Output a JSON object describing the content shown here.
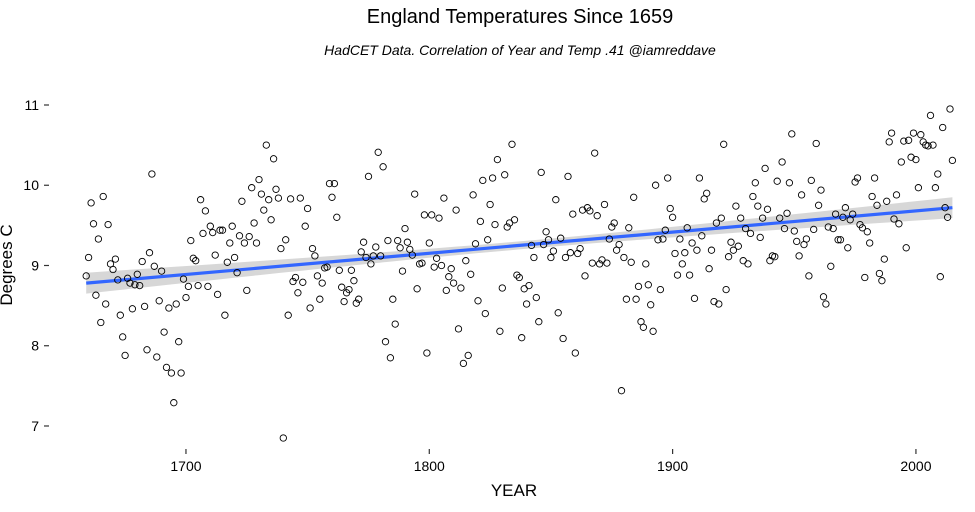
{
  "chart_data": {
    "type": "scatter",
    "title": "England Temperatures Since 1659",
    "subtitle": "HadCET Data. Correlation of Year and Temp .41 @iamreddave",
    "xlabel": "YEAR",
    "ylabel": "Degrees C",
    "xlim": [
      1650,
      2023
    ],
    "ylim": [
      6.75,
      11.2
    ],
    "xticks": [
      1700,
      1800,
      1900,
      2000
    ],
    "yticks": [
      7,
      8,
      9,
      10,
      11
    ],
    "grid": false,
    "colors": {
      "points": "#000000",
      "trend": "#3366ff",
      "confidence_band": "#d3d3d3"
    },
    "trend": {
      "method": "linear",
      "x": [
        1659,
        2015
      ],
      "y": [
        8.78,
        9.72
      ],
      "ci_halfwidth_ends": 0.13,
      "ci_halfwidth_mid": 0.05
    },
    "points": [
      [
        1659,
        8.87
      ],
      [
        1660,
        9.1
      ],
      [
        1661,
        9.78
      ],
      [
        1662,
        9.52
      ],
      [
        1663,
        8.63
      ],
      [
        1664,
        9.33
      ],
      [
        1665,
        8.29
      ],
      [
        1666,
        9.86
      ],
      [
        1667,
        8.52
      ],
      [
        1668,
        9.51
      ],
      [
        1669,
        9.02
      ],
      [
        1670,
        8.95
      ],
      [
        1671,
        9.08
      ],
      [
        1672,
        8.82
      ],
      [
        1673,
        8.38
      ],
      [
        1674,
        8.11
      ],
      [
        1675,
        7.88
      ],
      [
        1676,
        8.84
      ],
      [
        1677,
        8.78
      ],
      [
        1678,
        8.46
      ],
      [
        1679,
        8.76
      ],
      [
        1680,
        8.89
      ],
      [
        1681,
        8.75
      ],
      [
        1682,
        9.05
      ],
      [
        1683,
        8.49
      ],
      [
        1684,
        7.95
      ],
      [
        1685,
        9.16
      ],
      [
        1686,
        10.14
      ],
      [
        1687,
        8.99
      ],
      [
        1688,
        7.86
      ],
      [
        1689,
        8.56
      ],
      [
        1690,
        8.93
      ],
      [
        1691,
        8.17
      ],
      [
        1692,
        7.73
      ],
      [
        1693,
        8.47
      ],
      [
        1694,
        7.66
      ],
      [
        1695,
        7.29
      ],
      [
        1696,
        8.52
      ],
      [
        1697,
        8.05
      ],
      [
        1698,
        7.66
      ],
      [
        1699,
        8.83
      ],
      [
        1700,
        8.6
      ],
      [
        1701,
        8.74
      ],
      [
        1702,
        9.31
      ],
      [
        1703,
        9.09
      ],
      [
        1704,
        9.06
      ],
      [
        1705,
        8.75
      ],
      [
        1706,
        9.82
      ],
      [
        1707,
        9.4
      ],
      [
        1708,
        9.68
      ],
      [
        1709,
        8.74
      ],
      [
        1710,
        9.49
      ],
      [
        1711,
        9.41
      ],
      [
        1712,
        9.13
      ],
      [
        1713,
        8.64
      ],
      [
        1714,
        9.44
      ],
      [
        1715,
        9.44
      ],
      [
        1716,
        8.38
      ],
      [
        1717,
        9.04
      ],
      [
        1718,
        9.28
      ],
      [
        1719,
        9.49
      ],
      [
        1720,
        9.1
      ],
      [
        1721,
        8.91
      ],
      [
        1722,
        9.37
      ],
      [
        1723,
        9.8
      ],
      [
        1724,
        9.28
      ],
      [
        1725,
        8.69
      ],
      [
        1726,
        9.36
      ],
      [
        1727,
        9.97
      ],
      [
        1728,
        9.53
      ],
      [
        1729,
        9.28
      ],
      [
        1730,
        10.07
      ],
      [
        1731,
        9.89
      ],
      [
        1732,
        9.69
      ],
      [
        1733,
        10.5
      ],
      [
        1734,
        9.82
      ],
      [
        1735,
        9.57
      ],
      [
        1736,
        10.33
      ],
      [
        1737,
        9.95
      ],
      [
        1738,
        9.84
      ],
      [
        1739,
        9.21
      ],
      [
        1740,
        6.85
      ],
      [
        1741,
        9.32
      ],
      [
        1742,
        8.38
      ],
      [
        1743,
        9.83
      ],
      [
        1744,
        8.8
      ],
      [
        1745,
        8.85
      ],
      [
        1746,
        8.66
      ],
      [
        1747,
        9.84
      ],
      [
        1748,
        8.79
      ],
      [
        1749,
        9.49
      ],
      [
        1750,
        9.71
      ],
      [
        1751,
        8.47
      ],
      [
        1752,
        9.21
      ],
      [
        1753,
        9.12
      ],
      [
        1754,
        8.87
      ],
      [
        1755,
        8.58
      ],
      [
        1756,
        8.78
      ],
      [
        1757,
        8.97
      ],
      [
        1758,
        8.98
      ],
      [
        1759,
        10.02
      ],
      [
        1760,
        9.85
      ],
      [
        1761,
        10.02
      ],
      [
        1762,
        9.6
      ],
      [
        1763,
        8.94
      ],
      [
        1764,
        8.73
      ],
      [
        1765,
        8.55
      ],
      [
        1766,
        8.66
      ],
      [
        1767,
        8.7
      ],
      [
        1768,
        8.94
      ],
      [
        1769,
        8.81
      ],
      [
        1770,
        8.53
      ],
      [
        1771,
        8.58
      ],
      [
        1772,
        9.17
      ],
      [
        1773,
        9.29
      ],
      [
        1774,
        9.1
      ],
      [
        1775,
        10.11
      ],
      [
        1776,
        9.02
      ],
      [
        1777,
        9.12
      ],
      [
        1778,
        9.23
      ],
      [
        1779,
        10.41
      ],
      [
        1780,
        9.12
      ],
      [
        1781,
        10.23
      ],
      [
        1782,
        8.05
      ],
      [
        1783,
        9.31
      ],
      [
        1784,
        7.85
      ],
      [
        1785,
        8.58
      ],
      [
        1786,
        8.27
      ],
      [
        1787,
        9.31
      ],
      [
        1788,
        9.22
      ],
      [
        1789,
        8.93
      ],
      [
        1790,
        9.46
      ],
      [
        1791,
        9.29
      ],
      [
        1792,
        9.2
      ],
      [
        1793,
        9.13
      ],
      [
        1794,
        9.89
      ],
      [
        1795,
        8.71
      ],
      [
        1796,
        9.02
      ],
      [
        1797,
        9.03
      ],
      [
        1798,
        9.63
      ],
      [
        1799,
        7.91
      ],
      [
        1800,
        9.28
      ],
      [
        1801,
        9.63
      ],
      [
        1802,
        8.98
      ],
      [
        1803,
        9.09
      ],
      [
        1804,
        9.59
      ],
      [
        1805,
        9.0
      ],
      [
        1806,
        9.84
      ],
      [
        1807,
        8.69
      ],
      [
        1808,
        8.86
      ],
      [
        1809,
        8.96
      ],
      [
        1810,
        8.78
      ],
      [
        1811,
        9.69
      ],
      [
        1812,
        8.21
      ],
      [
        1813,
        8.72
      ],
      [
        1814,
        7.78
      ],
      [
        1815,
        9.06
      ],
      [
        1816,
        7.88
      ],
      [
        1817,
        8.89
      ],
      [
        1818,
        9.88
      ],
      [
        1819,
        9.27
      ],
      [
        1820,
        8.56
      ],
      [
        1821,
        9.55
      ],
      [
        1822,
        10.06
      ],
      [
        1823,
        8.4
      ],
      [
        1824,
        9.32
      ],
      [
        1825,
        9.76
      ],
      [
        1826,
        10.09
      ],
      [
        1827,
        9.51
      ],
      [
        1828,
        10.32
      ],
      [
        1829,
        8.18
      ],
      [
        1830,
        8.72
      ],
      [
        1831,
        10.13
      ],
      [
        1832,
        9.48
      ],
      [
        1833,
        9.53
      ],
      [
        1834,
        10.51
      ],
      [
        1835,
        9.57
      ],
      [
        1836,
        8.88
      ],
      [
        1837,
        8.85
      ],
      [
        1838,
        8.1
      ],
      [
        1839,
        8.71
      ],
      [
        1840,
        8.52
      ],
      [
        1841,
        8.75
      ],
      [
        1842,
        9.25
      ],
      [
        1843,
        9.1
      ],
      [
        1844,
        8.6
      ],
      [
        1845,
        8.3
      ],
      [
        1846,
        10.16
      ],
      [
        1847,
        9.26
      ],
      [
        1848,
        9.42
      ],
      [
        1849,
        9.32
      ],
      [
        1850,
        9.1
      ],
      [
        1851,
        9.18
      ],
      [
        1852,
        9.82
      ],
      [
        1853,
        8.41
      ],
      [
        1854,
        9.34
      ],
      [
        1855,
        8.09
      ],
      [
        1856,
        9.1
      ],
      [
        1857,
        10.11
      ],
      [
        1858,
        9.16
      ],
      [
        1859,
        9.64
      ],
      [
        1860,
        7.91
      ],
      [
        1861,
        9.15
      ],
      [
        1862,
        9.21
      ],
      [
        1863,
        9.69
      ],
      [
        1864,
        8.87
      ],
      [
        1865,
        9.72
      ],
      [
        1866,
        9.68
      ],
      [
        1867,
        9.03
      ],
      [
        1868,
        10.4
      ],
      [
        1869,
        9.62
      ],
      [
        1870,
        9.02
      ],
      [
        1871,
        9.07
      ],
      [
        1872,
        9.76
      ],
      [
        1873,
        9.03
      ],
      [
        1874,
        9.33
      ],
      [
        1875,
        9.48
      ],
      [
        1876,
        9.53
      ],
      [
        1877,
        9.19
      ],
      [
        1878,
        9.26
      ],
      [
        1879,
        7.44
      ],
      [
        1880,
        9.1
      ],
      [
        1881,
        8.58
      ],
      [
        1882,
        9.47
      ],
      [
        1883,
        9.04
      ],
      [
        1884,
        9.85
      ],
      [
        1885,
        8.58
      ],
      [
        1886,
        8.74
      ],
      [
        1887,
        8.3
      ],
      [
        1888,
        8.23
      ],
      [
        1889,
        9.02
      ],
      [
        1890,
        8.76
      ],
      [
        1891,
        8.51
      ],
      [
        1892,
        8.18
      ],
      [
        1893,
        10.0
      ],
      [
        1894,
        9.32
      ],
      [
        1895,
        8.7
      ],
      [
        1896,
        9.33
      ],
      [
        1897,
        9.44
      ],
      [
        1898,
        10.09
      ],
      [
        1899,
        9.71
      ],
      [
        1900,
        9.6
      ],
      [
        1901,
        9.15
      ],
      [
        1902,
        8.88
      ],
      [
        1903,
        9.33
      ],
      [
        1904,
        9.02
      ],
      [
        1905,
        9.16
      ],
      [
        1906,
        9.47
      ],
      [
        1907,
        8.88
      ],
      [
        1908,
        9.28
      ],
      [
        1909,
        8.59
      ],
      [
        1910,
        9.19
      ],
      [
        1911,
        10.09
      ],
      [
        1912,
        9.37
      ],
      [
        1913,
        9.83
      ],
      [
        1914,
        9.9
      ],
      [
        1915,
        8.96
      ],
      [
        1916,
        9.19
      ],
      [
        1917,
        8.55
      ],
      [
        1918,
        9.53
      ],
      [
        1919,
        8.52
      ],
      [
        1920,
        9.59
      ],
      [
        1921,
        10.51
      ],
      [
        1922,
        8.7
      ],
      [
        1923,
        9.11
      ],
      [
        1924,
        9.29
      ],
      [
        1925,
        9.19
      ],
      [
        1926,
        9.74
      ],
      [
        1927,
        9.24
      ],
      [
        1928,
        9.59
      ],
      [
        1929,
        9.06
      ],
      [
        1930,
        9.46
      ],
      [
        1931,
        9.02
      ],
      [
        1932,
        9.4
      ],
      [
        1933,
        9.86
      ],
      [
        1934,
        10.03
      ],
      [
        1935,
        9.74
      ],
      [
        1936,
        9.35
      ],
      [
        1937,
        9.59
      ],
      [
        1938,
        10.21
      ],
      [
        1939,
        9.7
      ],
      [
        1940,
        9.06
      ],
      [
        1941,
        9.12
      ],
      [
        1942,
        9.11
      ],
      [
        1943,
        10.05
      ],
      [
        1944,
        9.59
      ],
      [
        1945,
        10.29
      ],
      [
        1946,
        9.46
      ],
      [
        1947,
        9.65
      ],
      [
        1948,
        10.03
      ],
      [
        1949,
        10.64
      ],
      [
        1950,
        9.43
      ],
      [
        1951,
        9.3
      ],
      [
        1952,
        9.12
      ],
      [
        1953,
        9.88
      ],
      [
        1954,
        9.26
      ],
      [
        1955,
        9.33
      ],
      [
        1956,
        8.87
      ],
      [
        1957,
        10.06
      ],
      [
        1958,
        9.45
      ],
      [
        1959,
        10.52
      ],
      [
        1960,
        9.75
      ],
      [
        1961,
        9.94
      ],
      [
        1962,
        8.61
      ],
      [
        1963,
        8.52
      ],
      [
        1964,
        9.48
      ],
      [
        1965,
        8.99
      ],
      [
        1966,
        9.46
      ],
      [
        1967,
        9.64
      ],
      [
        1968,
        9.32
      ],
      [
        1969,
        9.32
      ],
      [
        1970,
        9.6
      ],
      [
        1971,
        9.72
      ],
      [
        1972,
        9.22
      ],
      [
        1973,
        9.57
      ],
      [
        1974,
        9.64
      ],
      [
        1975,
        10.04
      ],
      [
        1976,
        10.09
      ],
      [
        1977,
        9.51
      ],
      [
        1978,
        9.47
      ],
      [
        1979,
        8.85
      ],
      [
        1980,
        9.42
      ],
      [
        1981,
        9.28
      ],
      [
        1982,
        9.86
      ],
      [
        1983,
        10.09
      ],
      [
        1984,
        9.75
      ],
      [
        1985,
        8.9
      ],
      [
        1986,
        8.81
      ],
      [
        1987,
        9.08
      ],
      [
        1988,
        9.8
      ],
      [
        1989,
        10.54
      ],
      [
        1990,
        10.65
      ],
      [
        1991,
        9.58
      ],
      [
        1992,
        9.88
      ],
      [
        1993,
        9.52
      ],
      [
        1994,
        10.29
      ],
      [
        1995,
        10.55
      ],
      [
        1996,
        9.22
      ],
      [
        1997,
        10.56
      ],
      [
        1998,
        10.35
      ],
      [
        1999,
        10.65
      ],
      [
        2000,
        10.32
      ],
      [
        2001,
        9.97
      ],
      [
        2002,
        10.63
      ],
      [
        2003,
        10.54
      ],
      [
        2004,
        10.5
      ],
      [
        2005,
        10.49
      ],
      [
        2006,
        10.87
      ],
      [
        2007,
        10.5
      ],
      [
        2008,
        9.97
      ],
      [
        2009,
        10.14
      ],
      [
        2010,
        8.86
      ],
      [
        2011,
        10.72
      ],
      [
        2012,
        9.72
      ],
      [
        2013,
        9.6
      ],
      [
        2014,
        10.95
      ],
      [
        2015,
        10.31
      ]
    ]
  }
}
